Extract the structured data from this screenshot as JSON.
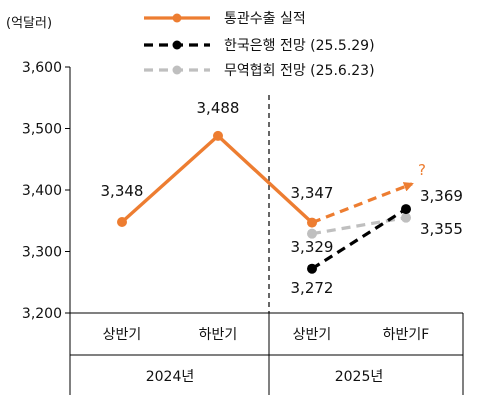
{
  "chart_data": {
    "type": "line",
    "unit_label": "(억달러)",
    "ylim": [
      3200,
      3600
    ],
    "y_ticks": [
      "3,200",
      "3,300",
      "3,400",
      "3,500",
      "3,600"
    ],
    "y_tick_values": [
      3200,
      3300,
      3400,
      3500,
      3600
    ],
    "categories": [
      "상반기",
      "하반기",
      "상반기",
      "하반기F"
    ],
    "year_groups": [
      {
        "label": "2024년",
        "categories": [
          "상반기",
          "하반기"
        ]
      },
      {
        "label": "2025년",
        "categories": [
          "상반기",
          "하반기F"
        ]
      }
    ],
    "forecast_mark": "?",
    "series": [
      {
        "name": "통관수출 실적",
        "color": "#ED7D31",
        "style": "solid",
        "points": [
          {
            "category": 0,
            "value": 3348,
            "label": "3,348"
          },
          {
            "category": 1,
            "value": 3488,
            "label": "3,488"
          },
          {
            "category": 2,
            "value": 3347,
            "label": "3,347"
          }
        ]
      },
      {
        "name": "한국은행 전망 (25.5.29)",
        "color": "#000000",
        "style": "dashed",
        "points": [
          {
            "category": 2,
            "value": 3272,
            "label": "3,272"
          },
          {
            "category": 3,
            "value": 3369,
            "label": "3,369"
          }
        ]
      },
      {
        "name": "무역협회 전망 (25.6.23)",
        "color": "#BFBFBF",
        "style": "dashed",
        "points": [
          {
            "category": 2,
            "value": 3329,
            "label": "3,329"
          },
          {
            "category": 3,
            "value": 3355,
            "label": "3,355"
          }
        ]
      }
    ],
    "forecast_arrow": {
      "color": "#ED7D31",
      "from": {
        "category": 2,
        "value": 3347
      },
      "to_value": 3410
    },
    "legend": {
      "position": "top"
    },
    "divider": "dashed vertical line between 2024 and 2025"
  }
}
